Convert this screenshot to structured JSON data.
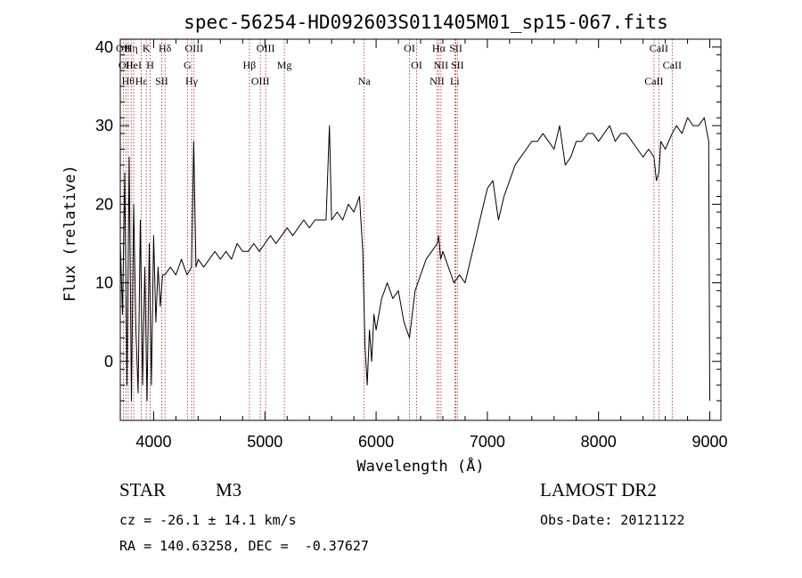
{
  "chart_data": {
    "type": "line",
    "title": "spec-56254-HD092603S011405M01_sp15-067.fits",
    "xlabel": "Wavelength (Å)",
    "ylabel": "Flux (relative)",
    "xlim": [
      3700,
      9100
    ],
    "ylim": [
      -7.5,
      41
    ],
    "xticks": [
      4000,
      5000,
      6000,
      7000,
      8000,
      9000
    ],
    "yticks": [
      0,
      10,
      20,
      30,
      40
    ],
    "grid": false,
    "legend": "none",
    "line_color": "#000000",
    "marker_color": "#b22222",
    "series": [
      {
        "x": [
          3700,
          3720,
          3740,
          3760,
          3780,
          3800,
          3820,
          3840,
          3860,
          3880,
          3900,
          3920,
          3940,
          3960,
          3980,
          4000,
          4020,
          4040,
          4060,
          4080,
          4100,
          4150,
          4200,
          4250,
          4300,
          4340,
          4360,
          4380,
          4400,
          4450,
          4500,
          4550,
          4600,
          4650,
          4700,
          4750,
          4800,
          4850,
          4900,
          4950,
          5000,
          5050,
          5100,
          5150,
          5200,
          5250,
          5300,
          5350,
          5400,
          5450,
          5500,
          5550,
          5580,
          5600,
          5650,
          5700,
          5750,
          5800,
          5850,
          5880,
          5900,
          5920,
          5940,
          5960,
          5980,
          6000,
          6050,
          6100,
          6150,
          6200,
          6250,
          6300,
          6350,
          6400,
          6450,
          6500,
          6550,
          6563,
          6580,
          6600,
          6650,
          6700,
          6750,
          6800,
          6850,
          6900,
          6950,
          7000,
          7050,
          7100,
          7150,
          7200,
          7250,
          7300,
          7350,
          7400,
          7450,
          7500,
          7550,
          7600,
          7650,
          7700,
          7750,
          7800,
          7850,
          7900,
          7950,
          8000,
          8050,
          8100,
          8150,
          8200,
          8250,
          8300,
          8350,
          8400,
          8450,
          8498,
          8520,
          8542,
          8560,
          8600,
          8662,
          8700,
          8750,
          8800,
          8850,
          8900,
          8950,
          8990,
          9000
        ],
        "y": [
          15,
          6,
          24,
          -3,
          26,
          -5,
          20,
          4,
          -4,
          18,
          -3,
          12,
          -5,
          15,
          -3,
          16,
          5,
          12,
          7,
          11,
          11,
          12,
          11,
          13,
          11,
          12,
          28,
          12,
          13,
          12,
          13,
          14,
          13,
          14,
          13,
          15,
          14,
          14,
          15,
          14,
          15,
          16,
          15,
          16,
          17,
          16,
          17,
          18,
          17,
          18,
          18,
          18,
          30,
          18,
          19,
          18,
          20,
          19,
          21,
          14,
          2,
          -3,
          4,
          0,
          6,
          4,
          8,
          10,
          8,
          9,
          5,
          3,
          9,
          11,
          13,
          14,
          15,
          16,
          13,
          14,
          12,
          10,
          11,
          10,
          13,
          16,
          19,
          22,
          23,
          18,
          21,
          23,
          25,
          26,
          27,
          28,
          28,
          29,
          28,
          27,
          30,
          25,
          26,
          28,
          28,
          29,
          29,
          28,
          29,
          30,
          28,
          29,
          29,
          28,
          27,
          26,
          27,
          26,
          23,
          24,
          28,
          27,
          29,
          30,
          29,
          31,
          30,
          30,
          31,
          28,
          -5
        ]
      }
    ],
    "line_markers": [
      {
        "wave": 3727,
        "label": "OII"
      },
      {
        "wave": 3750,
        "label": "OII"
      },
      {
        "wave": 3771,
        "label": "Hθ"
      },
      {
        "wave": 3798,
        "label": "Hη"
      },
      {
        "wave": 3820,
        "label": "HeI"
      },
      {
        "wave": 3889,
        "label": "Hε"
      },
      {
        "wave": 3934,
        "label": "K"
      },
      {
        "wave": 3969,
        "label": "H"
      },
      {
        "wave": 4072,
        "label": "SII"
      },
      {
        "wave": 4102,
        "label": "Hδ"
      },
      {
        "wave": 4304,
        "label": "G"
      },
      {
        "wave": 4341,
        "label": "Hγ"
      },
      {
        "wave": 4363,
        "label": "OIII"
      },
      {
        "wave": 4861,
        "label": "Hβ"
      },
      {
        "wave": 4959,
        "label": "OIII"
      },
      {
        "wave": 5007,
        "label": "OIII"
      },
      {
        "wave": 5175,
        "label": "Mg"
      },
      {
        "wave": 5893,
        "label": "Na"
      },
      {
        "wave": 6300,
        "label": "OI"
      },
      {
        "wave": 6364,
        "label": "OI"
      },
      {
        "wave": 6548,
        "label": "NII"
      },
      {
        "wave": 6563,
        "label": "Hα"
      },
      {
        "wave": 6583,
        "label": "NII"
      },
      {
        "wave": 6707,
        "label": "Li"
      },
      {
        "wave": 6717,
        "label": "SII"
      },
      {
        "wave": 6731,
        "label": "SII"
      },
      {
        "wave": 8498,
        "label": "CaII"
      },
      {
        "wave": 8542,
        "label": "CaII"
      },
      {
        "wave": 8662,
        "label": "CaII"
      }
    ]
  },
  "info": {
    "class": "STAR",
    "subclass": "M3",
    "survey": "LAMOST DR2",
    "cz": "cz = -26.1 ± 14.1 km/s",
    "obs_date": "Obs-Date: 20121122",
    "radec": "RA = 140.63258, DEC =  -0.37627"
  }
}
